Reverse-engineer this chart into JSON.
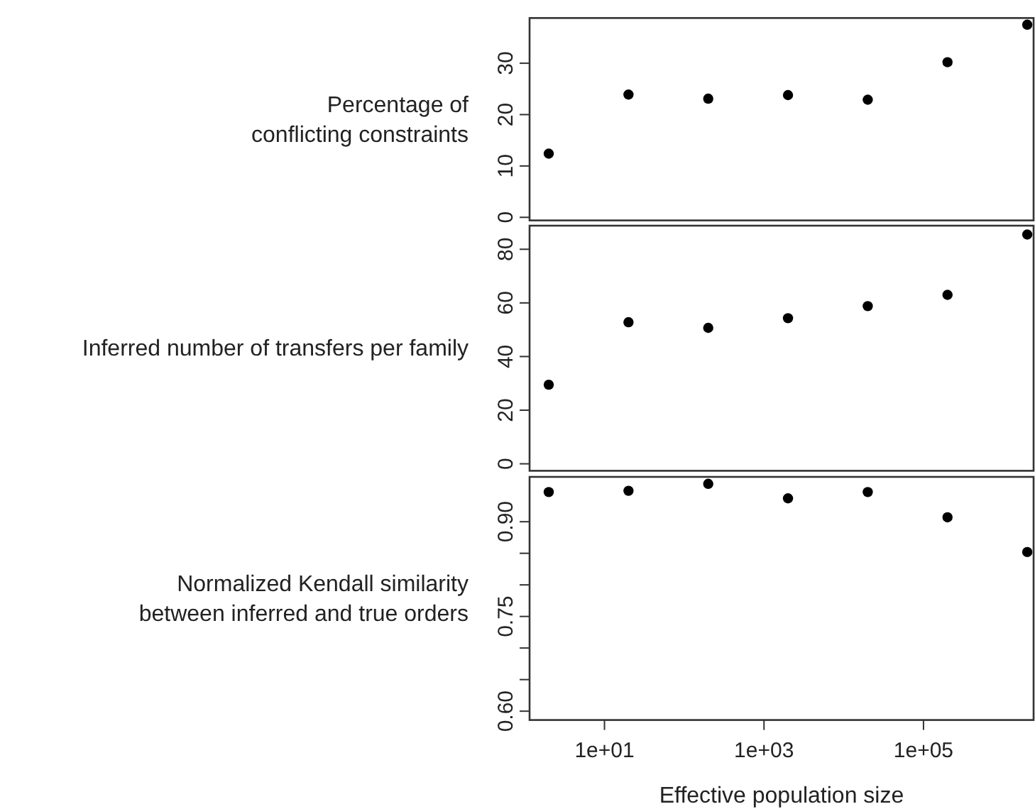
{
  "chart_data": [
    {
      "type": "scatter",
      "ylabel": "Percentage of\nconflicting constraints",
      "x": [
        2,
        20,
        200,
        2000,
        20000,
        200000,
        2000000
      ],
      "series": [
        {
          "color": "#000000",
          "values": [
            12.4,
            23.9,
            23.1,
            23.8,
            22.9,
            30.2,
            37.5
          ]
        }
      ],
      "log": "x",
      "xlim": [
        1.15,
        2400000
      ],
      "ylim": [
        -0.6,
        38.8
      ],
      "yticks": [
        0,
        10,
        20,
        30
      ],
      "tick_labels": "y",
      "marker": "circle",
      "grid": false
    },
    {
      "type": "scatter",
      "ylabel": "Inferred number of transfers per family",
      "x": [
        2,
        20,
        200,
        2000,
        20000,
        200000,
        2000000
      ],
      "series": [
        {
          "color": "#000000",
          "values": [
            29.5,
            52.8,
            50.7,
            54.3,
            58.8,
            63.0,
            85.5
          ]
        }
      ],
      "log": "x",
      "xlim": [
        1.15,
        2400000
      ],
      "ylim": [
        -2.6,
        88.8
      ],
      "yticks": [
        0,
        20,
        40,
        60,
        80
      ],
      "tick_labels": "y",
      "marker": "circle",
      "grid": false
    },
    {
      "type": "scatter",
      "ylabel": "Normalized Kendall similarity\nbetween inferred and true orders",
      "xlabel": "Effective population size",
      "x": [
        2,
        20,
        200,
        2000,
        20000,
        200000,
        2000000
      ],
      "series": [
        {
          "color": "#000000",
          "values": [
            0.947,
            0.949,
            0.96,
            0.937,
            0.947,
            0.907,
            0.852
          ]
        }
      ],
      "log": "x",
      "xlim": [
        1.15,
        2400000
      ],
      "xticks": [
        {
          "value": 10,
          "label": "1e+01"
        },
        {
          "value": 1000,
          "label": "1e+03"
        },
        {
          "value": 100000,
          "label": "1e+05"
        }
      ],
      "ylim": [
        0.586,
        0.971
      ],
      "yticks": [
        {
          "value": 0.6,
          "label": "0.60"
        },
        {
          "value": 0.65,
          "label": null
        },
        {
          "value": 0.7,
          "label": null
        },
        {
          "value": 0.75,
          "label": "0.75"
        },
        {
          "value": 0.8,
          "label": null
        },
        {
          "value": 0.85,
          "label": null
        },
        {
          "value": 0.9,
          "label": "0.90"
        }
      ],
      "marker": "circle",
      "grid": false
    }
  ]
}
